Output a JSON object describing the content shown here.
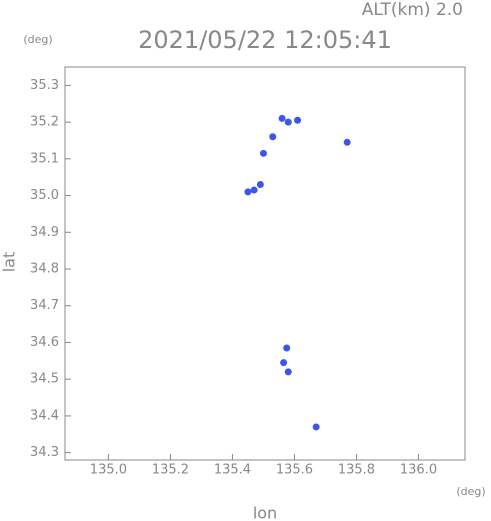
{
  "chart_data": {
    "type": "scatter",
    "title": "2021/05/22 12:05:41",
    "subtitle": "ALT(km) 2.0",
    "x_label": "lon",
    "y_label": "lat",
    "x_unit": "(deg)",
    "y_unit": "(deg)",
    "color": "#3d55f0",
    "x": [
      135.45,
      135.47,
      135.49,
      135.5,
      135.53,
      135.56,
      135.58,
      135.61,
      135.77,
      135.575,
      135.565,
      135.58,
      135.67
    ],
    "values": [
      35.01,
      35.015,
      35.03,
      35.115,
      35.16,
      35.21,
      35.2,
      35.205,
      35.145,
      34.585,
      34.545,
      34.52,
      34.37
    ],
    "xlim": [
      134.86,
      136.15
    ],
    "ylim": [
      34.28,
      35.35
    ],
    "xticks": [
      {
        "value": 135.0,
        "label": "135.0"
      },
      135.2,
      135.4,
      135.6,
      135.8,
      {
        "value": 136.0,
        "label": "136.0"
      }
    ],
    "yticks": [
      34.3,
      34.4,
      34.5,
      34.6,
      34.7,
      34.8,
      34.9,
      {
        "value": 35.0,
        "label": "35.0"
      },
      35.1,
      35.2,
      35.3
    ]
  }
}
